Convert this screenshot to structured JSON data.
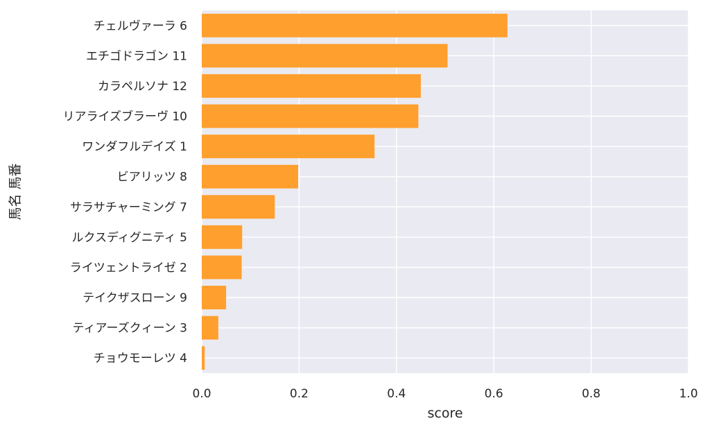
{
  "chart_data": {
    "type": "bar",
    "orientation": "horizontal",
    "categories": [
      "チェルヴァーラ 6",
      "エチゴドラゴン 11",
      "カラペルソナ 12",
      "リアライズブラーヴ 10",
      "ワンダフルデイズ 1",
      "ビアリッツ 8",
      "サラサチャーミング 7",
      "ルクスディグニティ 5",
      "ライツェントライゼ 2",
      "テイクザスローン 9",
      "ティアーズクィーン 3",
      "チョウモーレツ 4"
    ],
    "values": [
      0.628,
      0.505,
      0.45,
      0.445,
      0.355,
      0.198,
      0.15,
      0.083,
      0.082,
      0.05,
      0.034,
      0.006
    ],
    "xlabel": "score",
    "ylabel": "馬名 馬番",
    "xlim": [
      0,
      1.0
    ],
    "xticks": [
      "0.0",
      "0.2",
      "0.4",
      "0.6",
      "0.8",
      "1.0"
    ],
    "grid": true,
    "colors": {
      "bar": "#ff9f2e",
      "background": "#eaeaf2",
      "grid": "#ffffff"
    }
  }
}
